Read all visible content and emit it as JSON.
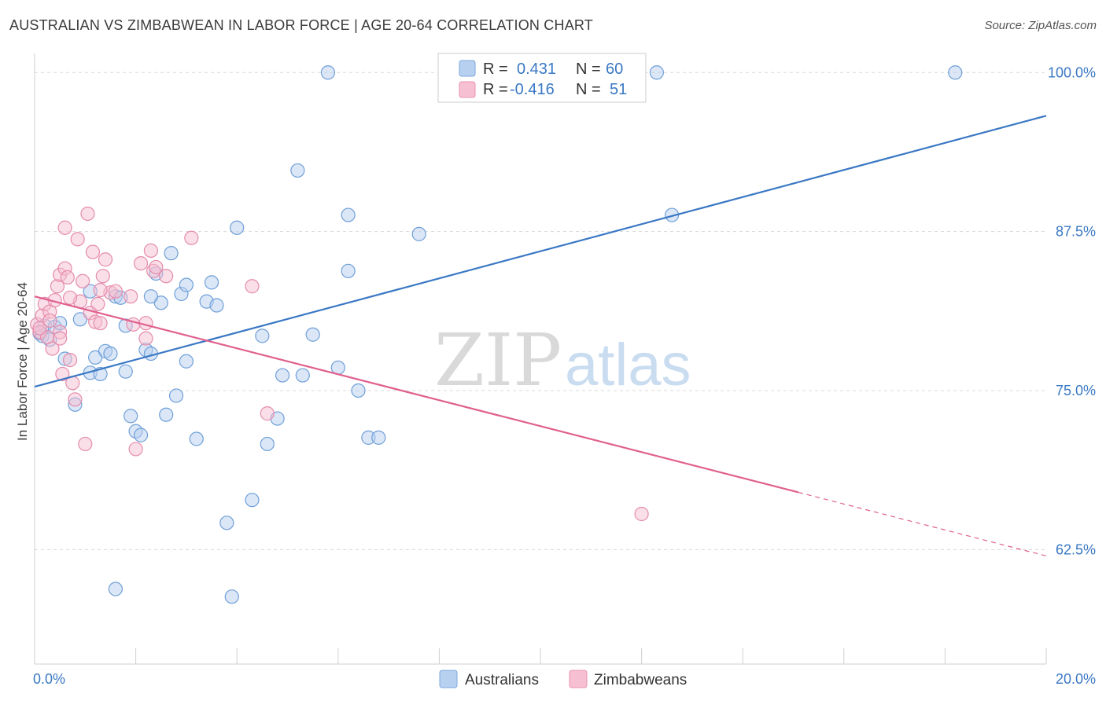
{
  "title": "AUSTRALIAN VS ZIMBABWEAN IN LABOR FORCE | AGE 20-64 CORRELATION CHART",
  "source": "Source: ZipAtlas.com",
  "watermark": {
    "zip": "ZIP",
    "atlas": "atlas"
  },
  "colors": {
    "blue": "#3a78c4",
    "blue_fill": "#b7d0f0",
    "pink": "#e0608e",
    "pink_fill": "#f6c0d2",
    "grid": "#d8d8d8"
  },
  "legend": {
    "rows": [
      {
        "r_label": "R =",
        "r_value": "0.431",
        "n_label": "N =",
        "n_value": "60",
        "color": "blue"
      },
      {
        "r_label": "R =",
        "r_value": "-0.416",
        "n_label": "N =",
        "n_value": "51",
        "color": "pink"
      }
    ]
  },
  "bottom_legend": [
    "Australians",
    "Zimbabweans"
  ],
  "chart_data": {
    "type": "scatter",
    "title": "AUSTRALIAN VS ZIMBABWEAN IN LABOR FORCE | AGE 20-64 CORRELATION CHART",
    "xlabel": "",
    "ylabel": "In Labor Force | Age 20-64",
    "xlim": [
      0,
      20
    ],
    "ylim": [
      53.5,
      101.5
    ],
    "x_tick_labels": [
      "0.0%",
      "20.0%"
    ],
    "y_ticks": [
      62.5,
      75.0,
      87.5,
      100.0
    ],
    "y_tick_labels": [
      "62.5%",
      "75.0%",
      "87.5%",
      "100.0%"
    ],
    "grid": true,
    "legend_position": "top-center",
    "series": [
      {
        "name": "Australians",
        "color": "#3a78c4",
        "trend": {
          "x": [
            0,
            20
          ],
          "y": [
            75.3,
            96.6
          ]
        },
        "points": [
          [
            0.1,
            79.5
          ],
          [
            0.15,
            79.3
          ],
          [
            0.2,
            80.1
          ],
          [
            0.3,
            79.0
          ],
          [
            0.4,
            80.0
          ],
          [
            0.5,
            80.3
          ],
          [
            0.6,
            77.5
          ],
          [
            0.8,
            73.9
          ],
          [
            0.9,
            80.6
          ],
          [
            1.1,
            82.8
          ],
          [
            1.1,
            76.4
          ],
          [
            1.2,
            77.6
          ],
          [
            1.3,
            76.3
          ],
          [
            1.4,
            78.1
          ],
          [
            1.5,
            77.9
          ],
          [
            1.6,
            82.4
          ],
          [
            1.7,
            82.3
          ],
          [
            1.8,
            80.1
          ],
          [
            1.8,
            76.5
          ],
          [
            1.9,
            73.0
          ],
          [
            2.0,
            71.8
          ],
          [
            2.1,
            71.5
          ],
          [
            2.2,
            78.2
          ],
          [
            2.3,
            77.9
          ],
          [
            2.4,
            84.2
          ],
          [
            2.5,
            81.9
          ],
          [
            2.6,
            73.1
          ],
          [
            2.7,
            85.8
          ],
          [
            2.8,
            74.6
          ],
          [
            2.9,
            82.6
          ],
          [
            3.0,
            83.3
          ],
          [
            3.0,
            77.3
          ],
          [
            3.2,
            71.2
          ],
          [
            3.4,
            82.0
          ],
          [
            3.5,
            83.5
          ],
          [
            3.6,
            81.7
          ],
          [
            3.8,
            64.6
          ],
          [
            3.9,
            58.8
          ],
          [
            4.0,
            87.8
          ],
          [
            4.3,
            66.4
          ],
          [
            4.5,
            79.3
          ],
          [
            4.6,
            70.8
          ],
          [
            4.8,
            72.8
          ],
          [
            4.9,
            76.2
          ],
          [
            5.2,
            92.3
          ],
          [
            5.3,
            76.2
          ],
          [
            5.5,
            79.4
          ],
          [
            5.8,
            100.0
          ],
          [
            6.0,
            76.8
          ],
          [
            6.2,
            84.4
          ],
          [
            6.2,
            88.8
          ],
          [
            6.4,
            75.0
          ],
          [
            6.6,
            71.3
          ],
          [
            6.8,
            71.3
          ],
          [
            7.6,
            87.3
          ],
          [
            12.3,
            100.0
          ],
          [
            12.6,
            88.8
          ],
          [
            18.2,
            100.0
          ],
          [
            1.6,
            59.4
          ],
          [
            2.3,
            82.4
          ]
        ]
      },
      {
        "name": "Zimbabweans",
        "color": "#e0608e",
        "trend": {
          "x": [
            0,
            15.1
          ],
          "y": [
            82.4,
            67.0
          ]
        },
        "trend_dashed": {
          "x": [
            15.1,
            20
          ],
          "y": [
            67.0,
            62.0
          ]
        },
        "points": [
          [
            0.05,
            80.2
          ],
          [
            0.1,
            79.6
          ],
          [
            0.15,
            80.9
          ],
          [
            0.2,
            81.8
          ],
          [
            0.25,
            79.2
          ],
          [
            0.3,
            81.2
          ],
          [
            0.35,
            78.3
          ],
          [
            0.4,
            82.1
          ],
          [
            0.45,
            83.2
          ],
          [
            0.5,
            84.1
          ],
          [
            0.5,
            79.6
          ],
          [
            0.55,
            76.3
          ],
          [
            0.6,
            84.6
          ],
          [
            0.6,
            87.8
          ],
          [
            0.65,
            83.9
          ],
          [
            0.7,
            77.4
          ],
          [
            0.75,
            75.6
          ],
          [
            0.8,
            74.3
          ],
          [
            0.85,
            86.9
          ],
          [
            0.9,
            82.0
          ],
          [
            0.95,
            83.6
          ],
          [
            1.0,
            70.8
          ],
          [
            1.05,
            88.9
          ],
          [
            1.1,
            81.1
          ],
          [
            1.15,
            85.9
          ],
          [
            1.2,
            80.4
          ],
          [
            1.25,
            81.8
          ],
          [
            1.3,
            80.3
          ],
          [
            1.35,
            84.0
          ],
          [
            1.4,
            85.3
          ],
          [
            1.5,
            82.7
          ],
          [
            1.6,
            82.8
          ],
          [
            1.9,
            82.4
          ],
          [
            1.95,
            80.2
          ],
          [
            2.0,
            70.4
          ],
          [
            2.1,
            85.0
          ],
          [
            2.2,
            79.1
          ],
          [
            2.3,
            86.0
          ],
          [
            2.35,
            84.4
          ],
          [
            2.4,
            84.7
          ],
          [
            2.6,
            84.0
          ],
          [
            3.1,
            87.0
          ],
          [
            4.3,
            83.2
          ],
          [
            4.6,
            73.2
          ],
          [
            12.0,
            65.3
          ],
          [
            0.1,
            79.9
          ],
          [
            0.7,
            82.3
          ],
          [
            0.3,
            80.5
          ],
          [
            1.3,
            82.9
          ],
          [
            2.2,
            80.3
          ],
          [
            0.5,
            79.1
          ]
        ]
      }
    ]
  }
}
